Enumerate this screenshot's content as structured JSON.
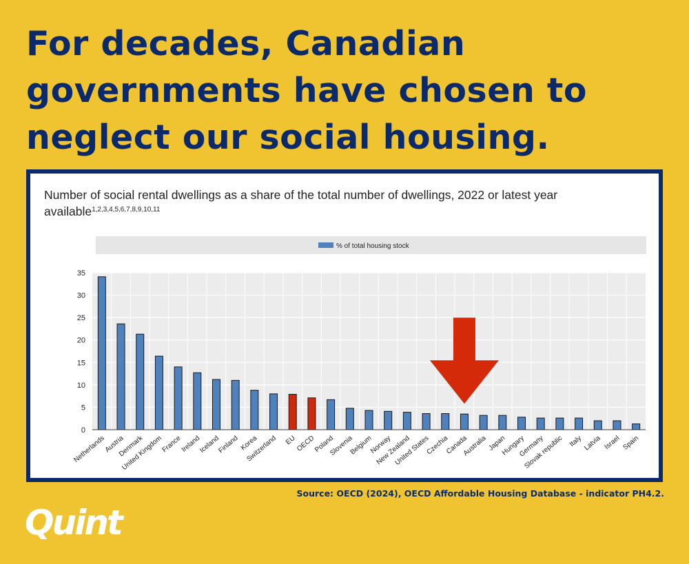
{
  "headline": "For decades, Canadian governments have chosen to neglect our social housing.",
  "source": "Source: OECD (2024), OECD Affordable Housing Database - indicator PH4.2.",
  "logo_text": "Quint",
  "colors": {
    "background": "#f0c330",
    "headline": "#0b2a6b",
    "bar": "#4f81bd",
    "bar_highlight": "#cc2a0c",
    "arrow": "#d42a0a"
  },
  "chart_data": {
    "type": "bar",
    "title": "Number of social rental dwellings as a share of the total number of dwellings, 2022 or latest year available",
    "title_footnotes": "1,2,3,4,5,6,7,8,9,10,11",
    "legend": {
      "position": "top",
      "entries": [
        "% of total housing stock"
      ]
    },
    "ylim": [
      0,
      35
    ],
    "yticks": [
      0,
      5,
      10,
      15,
      20,
      25,
      30,
      35
    ],
    "grid": true,
    "categories": [
      "Netherlands",
      "Austria",
      "Denmark",
      "United Kingdom",
      "France",
      "Ireland",
      "Iceland",
      "Finland",
      "Korea",
      "Switzerland",
      "EU",
      "OECD",
      "Poland",
      "Slovenia",
      "Belgium",
      "Norway",
      "New Zealand",
      "United States",
      "Czechia",
      "Canada",
      "Australia",
      "Japan",
      "Hungary",
      "Germany",
      "Slovak republic",
      "Italy",
      "Latvia",
      "Israel",
      "Spain"
    ],
    "series": [
      {
        "name": "% of total housing stock",
        "values": [
          34.1,
          23.6,
          21.3,
          16.4,
          14.0,
          12.7,
          11.2,
          11.0,
          8.8,
          8.0,
          7.9,
          7.1,
          6.7,
          4.8,
          4.3,
          4.1,
          3.9,
          3.6,
          3.6,
          3.5,
          3.2,
          3.2,
          2.8,
          2.6,
          2.6,
          2.6,
          2.0,
          2.0,
          1.3
        ]
      }
    ],
    "highlighted": [
      "EU",
      "OECD"
    ],
    "annotation": {
      "type": "arrow",
      "target": "Canada"
    }
  }
}
